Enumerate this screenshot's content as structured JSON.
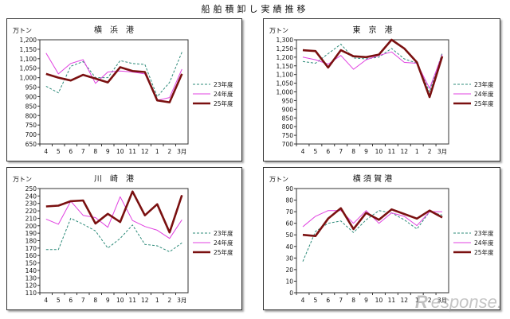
{
  "page_title": "船舶積卸し実績推移",
  "watermark": {
    "mark": "R",
    "text": "esponse."
  },
  "colors": {
    "s23": "#2e8b7a",
    "s24": "#e040e0",
    "s25": "#7a1010"
  },
  "chart_data": [
    {
      "type": "line",
      "title": "横　浜　港",
      "ylabel": "万トン",
      "categories": [
        "4",
        "5",
        "6",
        "7",
        "8",
        "9",
        "10",
        "11",
        "12",
        "1",
        "2",
        "3月"
      ],
      "ylim": [
        650,
        1200
      ],
      "ytick_step": 50,
      "yticks": [
        "650",
        "700",
        "750",
        "800",
        "850",
        "900",
        "950",
        "1,000",
        "1,050",
        "1,100",
        "1,150",
        "1,200"
      ],
      "legend_pos": "right",
      "series": [
        {
          "name": "23年度",
          "values": [
            955,
            920,
            1060,
            1085,
            1000,
            1000,
            1090,
            1075,
            1070,
            900,
            975,
            1135
          ]
        },
        {
          "name": "24年度",
          "values": [
            1130,
            1020,
            1075,
            1095,
            970,
            1030,
            1035,
            1030,
            1020,
            880,
            895,
            1045
          ]
        },
        {
          "name": "25年度",
          "values": [
            1020,
            1000,
            985,
            1015,
            995,
            975,
            1055,
            1035,
            1030,
            880,
            870,
            1020
          ]
        }
      ]
    },
    {
      "type": "line",
      "title": "東　京　港",
      "ylabel": "万トン",
      "categories": [
        "4",
        "5",
        "6",
        "7",
        "8",
        "9",
        "10",
        "11",
        "12",
        "1",
        "2",
        "3月"
      ],
      "ylim": [
        700,
        1300
      ],
      "ytick_step": 50,
      "yticks": [
        "700",
        "750",
        "800",
        "850",
        "900",
        "950",
        "1,000",
        "1,050",
        "1,100",
        "1,150",
        "1,200",
        "1,250",
        "1,300"
      ],
      "legend_pos": "right",
      "series": [
        {
          "name": "23年度",
          "values": [
            1175,
            1165,
            1220,
            1275,
            1195,
            1190,
            1200,
            1250,
            1190,
            1165,
            1000,
            1225
          ]
        },
        {
          "name": "24年度",
          "values": [
            1200,
            1185,
            1160,
            1210,
            1130,
            1185,
            1210,
            1230,
            1170,
            1165,
            1020,
            1215
          ]
        },
        {
          "name": "25年度",
          "values": [
            1240,
            1235,
            1140,
            1240,
            1205,
            1200,
            1215,
            1300,
            1250,
            1170,
            970,
            1205
          ]
        }
      ]
    },
    {
      "type": "line",
      "title": "川　崎　港",
      "ylabel": "万トン",
      "categories": [
        "4",
        "5",
        "6",
        "7",
        "8",
        "9",
        "10",
        "11",
        "12",
        "1",
        "2",
        "3月"
      ],
      "ylim": [
        110,
        250
      ],
      "ytick_step": 10,
      "yticks": [
        "110",
        "120",
        "130",
        "140",
        "150",
        "160",
        "170",
        "180",
        "190",
        "200",
        "210",
        "220",
        "230",
        "240",
        "250"
      ],
      "legend_pos": "right",
      "series": [
        {
          "name": "23年度",
          "values": [
            168,
            168,
            210,
            202,
            193,
            170,
            183,
            201,
            175,
            173,
            165,
            177
          ]
        },
        {
          "name": "24年度",
          "values": [
            209,
            202,
            233,
            214,
            211,
            198,
            239,
            207,
            199,
            194,
            183,
            208
          ]
        },
        {
          "name": "25年度",
          "values": [
            226,
            227,
            233,
            234,
            203,
            216,
            205,
            246,
            214,
            229,
            191,
            241
          ]
        }
      ]
    },
    {
      "type": "line",
      "title": "横 須 賀 港",
      "ylabel": "万トン",
      "categories": [
        "4",
        "5",
        "6",
        "7",
        "8",
        "9",
        "10",
        "11",
        "12",
        "1",
        "2",
        "3月"
      ],
      "ylim": [
        0,
        90
      ],
      "ytick_step": 10,
      "yticks": [
        "0",
        "10",
        "20",
        "30",
        "40",
        "50",
        "60",
        "70",
        "80",
        "90"
      ],
      "legend_pos": "right",
      "series": [
        {
          "name": "23年度",
          "values": [
            27,
            53,
            60,
            62,
            52,
            63,
            71,
            69,
            63,
            55,
            70,
            67
          ]
        },
        {
          "name": "24年度",
          "values": [
            57,
            66,
            71,
            71,
            60,
            71,
            60,
            69,
            66,
            58,
            70,
            70
          ]
        },
        {
          "name": "25年度",
          "values": [
            50,
            49,
            64,
            73,
            55,
            69,
            63,
            72,
            68,
            64,
            71,
            65
          ]
        }
      ]
    }
  ]
}
